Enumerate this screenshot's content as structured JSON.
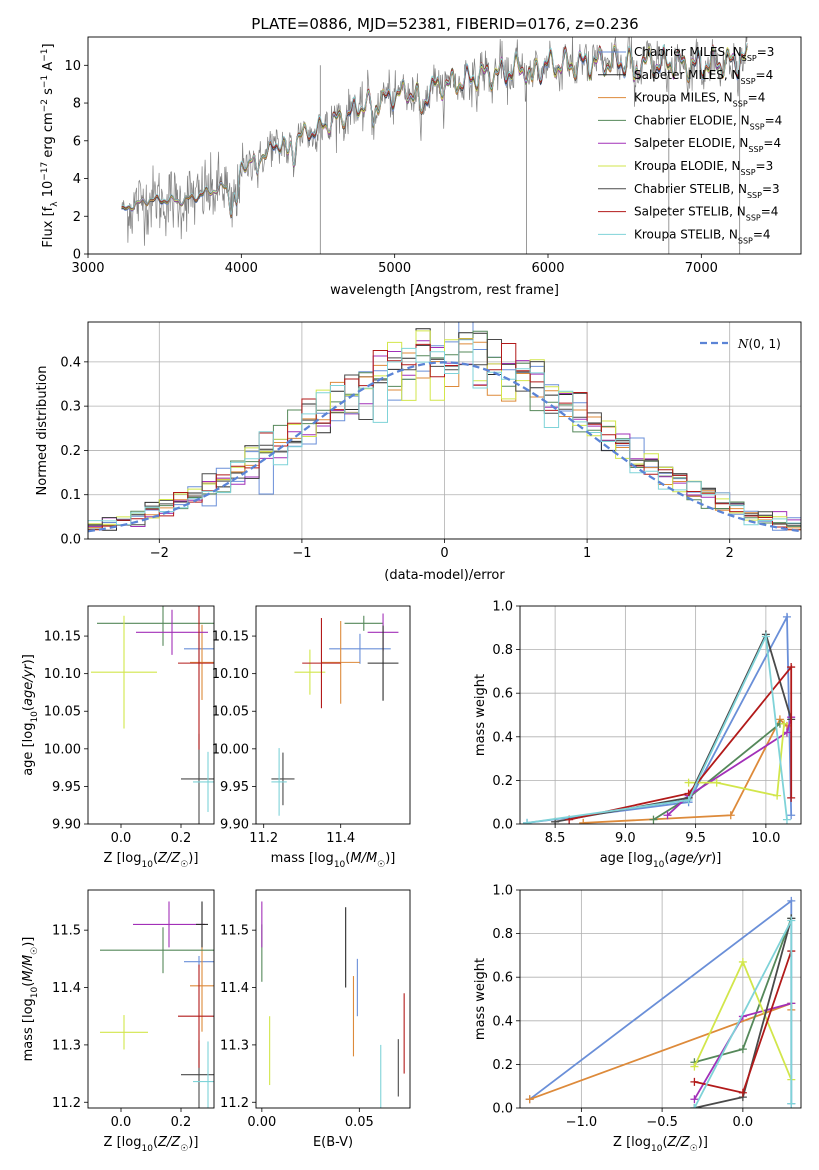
{
  "figure": {
    "title": "PLATE=0886, MJD=52381, FIBERID=0176, z=0.236"
  },
  "model_colors": {
    "Chabrier MILES": "#6a8fd8",
    "Salpeter MILES": "#2b2b2b",
    "Kroupa MILES": "#dd8a3a",
    "Chabrier ELODIE": "#55885a",
    "Salpeter ELODIE": "#a230b8",
    "Kroupa ELODIE": "#d2e64b",
    "Chabrier STELIB": "#4a4a4a",
    "Salpeter STELIB": "#b21a1a",
    "Kroupa STELIB": "#7fd3d8"
  },
  "legend_labels": [
    {
      "model": "Chabrier MILES",
      "text": "Chabrier MILES, N",
      "n": "3"
    },
    {
      "model": "Salpeter MILES",
      "text": "Salpeter MILES, N",
      "n": "4"
    },
    {
      "model": "Kroupa MILES",
      "text": "Kroupa MILES, N",
      "n": "4"
    },
    {
      "model": "Chabrier ELODIE",
      "text": "Chabrier ELODIE, N",
      "n": "4"
    },
    {
      "model": "Salpeter ELODIE",
      "text": "Salpeter ELODIE, N",
      "n": "4"
    },
    {
      "model": "Kroupa ELODIE",
      "text": "Kroupa ELODIE, N",
      "n": "3"
    },
    {
      "model": "Chabrier STELIB",
      "text": "Chabrier STELIB, N",
      "n": "3"
    },
    {
      "model": "Salpeter STELIB",
      "text": "Salpeter STELIB, N",
      "n": "4"
    },
    {
      "model": "Kroupa STELIB",
      "text": "Kroupa STELIB, N",
      "n": "4"
    }
  ],
  "chart_data": [
    {
      "id": "spectrum",
      "type": "line",
      "title": "PLATE=0886, MJD=52381, FIBERID=0176, z=0.236",
      "xlabel": "wavelength [Angstrom, rest frame]",
      "ylabel": "Flux [f_λ 10^-17 erg cm^-2 s^-1 A^-1]",
      "xlim": [
        3000,
        7650
      ],
      "ylim": [
        0,
        11.5
      ],
      "xticks": [
        3000,
        4000,
        5000,
        6000,
        7000
      ],
      "yticks": [
        0,
        2,
        4,
        6,
        8,
        10
      ],
      "data_color": "#808080",
      "wavelength_range": [
        3220,
        7300
      ],
      "continuum_anchors": [
        [
          3220,
          2.3
        ],
        [
          3400,
          2.9
        ],
        [
          3600,
          2.8
        ],
        [
          3800,
          3.3
        ],
        [
          3900,
          3.6
        ],
        [
          4000,
          4.6
        ],
        [
          4300,
          6.1
        ],
        [
          4500,
          6.6
        ],
        [
          4800,
          7.9
        ],
        [
          5000,
          8.4
        ],
        [
          5200,
          8.7
        ],
        [
          5600,
          9.5
        ],
        [
          6000,
          10.0
        ],
        [
          6500,
          10.2
        ],
        [
          7000,
          10.0
        ],
        [
          7300,
          10.3
        ]
      ]
    },
    {
      "id": "residuals",
      "type": "line",
      "xlabel": "(data-model)/error",
      "ylabel": "Normed distribution",
      "xlim": [
        -2.5,
        2.5
      ],
      "ylim": [
        0,
        0.49
      ],
      "xticks": [
        -2,
        -1,
        0,
        1,
        2
      ],
      "yticks": [
        0.0,
        0.1,
        0.2,
        0.3,
        0.4
      ],
      "grid": true,
      "legend": "top-right",
      "reference_curve": {
        "name": "N(0,1)",
        "mean": 0,
        "sigma": 1,
        "color": "#5b84d6"
      }
    },
    {
      "id": "age_vs_Z",
      "type": "scatter",
      "xlabel": "Z [log10(Z/Z☉)]",
      "ylabel": "age [log10(age/yr)]",
      "xlim": [
        -0.11,
        0.31
      ],
      "ylim": [
        9.9,
        10.19
      ],
      "xticks": [
        0.0,
        0.2
      ],
      "yticks": [
        9.9,
        9.95,
        10.0,
        10.05,
        10.1,
        10.15
      ],
      "points": [
        {
          "model": "Chabrier MILES",
          "x": 0.26,
          "y": 10.133,
          "xerr": 0.05,
          "yerr": 0.02
        },
        {
          "model": "Kroupa MILES",
          "x": 0.27,
          "y": 10.115,
          "xerr": 0.04,
          "yerr": 0.05
        },
        {
          "model": "Chabrier ELODIE",
          "x": 0.14,
          "y": 10.167,
          "xerr": 0.22,
          "yerr": 0.03
        },
        {
          "model": "Salpeter ELODIE",
          "x": 0.17,
          "y": 10.155,
          "xerr": 0.12,
          "yerr": 0.03
        },
        {
          "model": "Kroupa ELODIE",
          "x": 0.01,
          "y": 10.102,
          "xerr": 0.11,
          "yerr": 0.075
        },
        {
          "model": "Chabrier STELIB",
          "x": 0.26,
          "y": 9.96,
          "xerr": 0.06,
          "yerr": 0.06
        },
        {
          "model": "Salpeter STELIB",
          "x": 0.26,
          "y": 10.114,
          "xerr": 0.07,
          "yerr": 0.115
        },
        {
          "model": "Kroupa STELIB",
          "x": 0.29,
          "y": 9.956,
          "xerr": 0.05,
          "yerr": 0.04
        }
      ]
    },
    {
      "id": "age_vs_mass",
      "type": "scatter",
      "xlabel": "mass [log10(M/M☉)]",
      "ylabel": "",
      "xlim": [
        11.18,
        11.58
      ],
      "ylim": [
        9.9,
        10.19
      ],
      "xticks": [
        11.2,
        11.4
      ],
      "yticks": [
        9.9,
        9.95,
        10.0,
        10.05,
        10.1,
        10.15
      ],
      "points": [
        {
          "model": "Chabrier MILES",
          "x": 11.45,
          "y": 10.133,
          "xerr": 0.08,
          "yerr": 0.02
        },
        {
          "model": "Kroupa MILES",
          "x": 11.4,
          "y": 10.115,
          "xerr": 0.05,
          "yerr": 0.055
        },
        {
          "model": "Chabrier ELODIE",
          "x": 11.46,
          "y": 10.167,
          "xerr": 0.05,
          "yerr": 0.01
        },
        {
          "model": "Salpeter ELODIE",
          "x": 11.51,
          "y": 10.155,
          "xerr": 0.04,
          "yerr": 0.025
        },
        {
          "model": "Kroupa ELODIE",
          "x": 11.32,
          "y": 10.102,
          "xerr": 0.04,
          "yerr": 0.03
        },
        {
          "model": "Chabrier STELIB",
          "x": 11.25,
          "y": 9.96,
          "xerr": 0.03,
          "yerr": 0.035
        },
        {
          "model": "Salpeter STELIB",
          "x": 11.35,
          "y": 10.114,
          "xerr": 0.05,
          "yerr": 0.06
        },
        {
          "model": "Kroupa STELIB",
          "x": 11.24,
          "y": 9.956,
          "xerr": 0.02,
          "yerr": 0.045
        },
        {
          "model": "Salpeter MILES",
          "x": 11.51,
          "y": 10.114,
          "xerr": 0.04,
          "yerr": 0.05
        }
      ]
    },
    {
      "id": "weight_vs_age",
      "type": "line",
      "xlabel": "age [log10(age/yr)]",
      "ylabel": "mass weight",
      "xlim": [
        8.25,
        10.25
      ],
      "ylim": [
        0,
        1.0
      ],
      "xticks": [
        8.5,
        9.0,
        9.5,
        10.0
      ],
      "yticks": [
        0.0,
        0.2,
        0.4,
        0.6,
        0.8,
        1.0
      ],
      "grid": true,
      "series": [
        {
          "model": "Chabrier MILES",
          "x": [
            8.3,
            9.45,
            10.15,
            10.18
          ],
          "y": [
            0.005,
            0.1,
            0.95,
            0.04
          ]
        },
        {
          "model": "Kroupa MILES",
          "x": [
            8.7,
            9.75,
            10.1,
            10.15
          ],
          "y": [
            0.005,
            0.04,
            0.48,
            0.45
          ]
        },
        {
          "model": "Chabrier ELODIE",
          "x": [
            9.2,
            9.45,
            10.1
          ],
          "y": [
            0.02,
            0.12,
            0.46
          ]
        },
        {
          "model": "Salpeter ELODIE",
          "x": [
            9.3,
            9.45,
            10.15,
            10.18
          ],
          "y": [
            0.04,
            0.13,
            0.42,
            0.49
          ]
        },
        {
          "model": "Kroupa ELODIE",
          "x": [
            9.45,
            9.65,
            10.08,
            10.13
          ],
          "y": [
            0.19,
            0.19,
            0.13,
            0.46
          ]
        },
        {
          "model": "Chabrier STELIB",
          "x": [
            8.5,
            9.45,
            10.0,
            10.18
          ],
          "y": [
            0.01,
            0.12,
            0.87,
            0.48
          ]
        },
        {
          "model": "Salpeter STELIB",
          "x": [
            8.6,
            9.45,
            10.18,
            10.18
          ],
          "y": [
            0.02,
            0.14,
            0.72,
            0.12
          ]
        },
        {
          "model": "Kroupa STELIB",
          "x": [
            8.3,
            9.45,
            10.0,
            10.15
          ],
          "y": [
            0.005,
            0.11,
            0.86,
            0.02
          ]
        }
      ]
    },
    {
      "id": "mass_vs_Z",
      "type": "scatter",
      "xlabel": "Z [log10(Z/Z☉)]",
      "ylabel": "mass [log10(M/M☉)]",
      "xlim": [
        -0.11,
        0.31
      ],
      "ylim": [
        11.19,
        11.57
      ],
      "xticks": [
        0.0,
        0.2
      ],
      "yticks": [
        11.2,
        11.3,
        11.4,
        11.5
      ],
      "points": [
        {
          "model": "Chabrier MILES",
          "x": 0.26,
          "y": 11.445,
          "xerr": 0.05,
          "yerr": 0.01
        },
        {
          "model": "Kroupa MILES",
          "x": 0.27,
          "y": 11.403,
          "xerr": 0.04,
          "yerr": 0.08
        },
        {
          "model": "Chabrier ELODIE",
          "x": 0.14,
          "y": 11.465,
          "xerr": 0.21,
          "yerr": 0.04
        },
        {
          "model": "Salpeter ELODIE",
          "x": 0.16,
          "y": 11.51,
          "xerr": 0.12,
          "yerr": 0.04
        },
        {
          "model": "Kroupa ELODIE",
          "x": 0.01,
          "y": 11.322,
          "xerr": 0.08,
          "yerr": 0.03
        },
        {
          "model": "Chabrier STELIB",
          "x": 0.26,
          "y": 11.248,
          "xerr": 0.06,
          "yerr": 0.06
        },
        {
          "model": "Salpeter STELIB",
          "x": 0.26,
          "y": 11.35,
          "xerr": 0.07,
          "yerr": 0.09
        },
        {
          "model": "Kroupa STELIB",
          "x": 0.29,
          "y": 11.236,
          "xerr": 0.05,
          "yerr": 0.07
        },
        {
          "model": "Salpeter MILES",
          "x": 0.27,
          "y": 11.51,
          "xerr": 0.02,
          "yerr": 0.04
        }
      ]
    },
    {
      "id": "mass_vs_ebv",
      "type": "scatter",
      "xlabel": "E(B-V)",
      "ylabel": "",
      "xlim": [
        -0.003,
        0.076
      ],
      "ylim": [
        11.19,
        11.57
      ],
      "xticks": [
        0.0,
        0.05
      ],
      "yticks": [
        11.2,
        11.3,
        11.4,
        11.5
      ],
      "points": [
        {
          "model": "Chabrier MILES",
          "x": 0.049,
          "y": 11.4,
          "xerr": 0.0,
          "yerr": 0.05
        },
        {
          "model": "Kroupa MILES",
          "x": 0.047,
          "y": 11.35,
          "xerr": 0.0,
          "yerr": 0.07
        },
        {
          "model": "Chabrier ELODIE",
          "x": 0.0,
          "y": 11.46,
          "xerr": 0.0,
          "yerr": 0.05
        },
        {
          "model": "Salpeter ELODIE",
          "x": 0.0,
          "y": 11.51,
          "xerr": 0.0,
          "yerr": 0.04
        },
        {
          "model": "Kroupa ELODIE",
          "x": 0.004,
          "y": 11.29,
          "xerr": 0.0,
          "yerr": 0.06
        },
        {
          "model": "Chabrier STELIB",
          "x": 0.07,
          "y": 11.26,
          "xerr": 0.0,
          "yerr": 0.05
        },
        {
          "model": "Salpeter STELIB",
          "x": 0.073,
          "y": 11.32,
          "xerr": 0.0,
          "yerr": 0.07
        },
        {
          "model": "Kroupa STELIB",
          "x": 0.061,
          "y": 11.24,
          "xerr": 0.0,
          "yerr": 0.06
        },
        {
          "model": "Salpeter MILES",
          "x": 0.043,
          "y": 11.47,
          "xerr": 0.0,
          "yerr": 0.07
        }
      ]
    },
    {
      "id": "weight_vs_Z",
      "type": "line",
      "xlabel": "Z [log10(Z/Z☉)]",
      "ylabel": "mass weight",
      "xlim": [
        -1.38,
        0.36
      ],
      "ylim": [
        0,
        1.0
      ],
      "xticks": [
        -1.0,
        -0.5,
        0.0
      ],
      "yticks": [
        0.0,
        0.2,
        0.4,
        0.6,
        0.8,
        1.0
      ],
      "grid": true,
      "series": [
        {
          "model": "Chabrier MILES",
          "x": [
            -1.32,
            0.3,
            0.3
          ],
          "y": [
            0.04,
            0.95,
            0.02
          ]
        },
        {
          "model": "Kroupa MILES",
          "x": [
            -1.32,
            0.3,
            0.3
          ],
          "y": [
            0.04,
            0.48,
            0.45
          ]
        },
        {
          "model": "Chabrier ELODIE",
          "x": [
            -0.3,
            0.0,
            0.3
          ],
          "y": [
            0.21,
            0.27,
            0.87
          ]
        },
        {
          "model": "Salpeter ELODIE",
          "x": [
            -0.3,
            0.0,
            0.3
          ],
          "y": [
            0.04,
            0.42,
            0.48
          ]
        },
        {
          "model": "Kroupa ELODIE",
          "x": [
            -0.3,
            0.0,
            0.3
          ],
          "y": [
            0.19,
            0.67,
            0.13
          ]
        },
        {
          "model": "Chabrier STELIB",
          "x": [
            -0.3,
            0.0,
            0.3
          ],
          "y": [
            0.0,
            0.05,
            0.87
          ]
        },
        {
          "model": "Salpeter STELIB",
          "x": [
            -0.3,
            0.0,
            0.3
          ],
          "y": [
            0.12,
            0.07,
            0.72
          ]
        },
        {
          "model": "Kroupa STELIB",
          "x": [
            -0.3,
            0.3,
            0.3
          ],
          "y": [
            0.0,
            0.86,
            0.02
          ]
        }
      ]
    }
  ]
}
